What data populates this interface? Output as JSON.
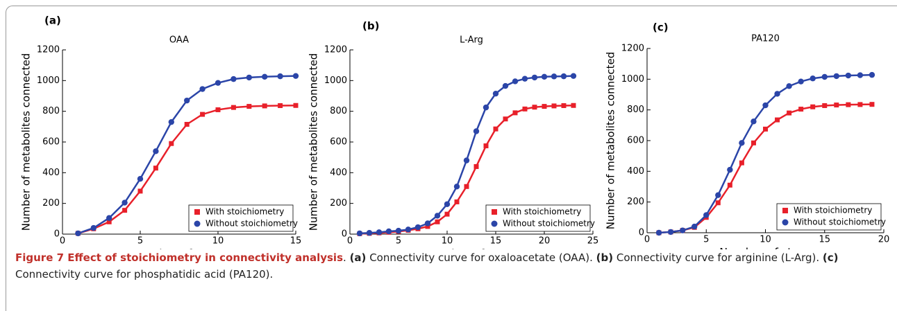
{
  "chart_data": [
    {
      "type": "line",
      "panel_label": "(a)",
      "title": "OAA",
      "xlabel": "Number of steps",
      "ylabel": "Number of metabolites connected",
      "x": [
        1,
        2,
        3,
        4,
        5,
        6,
        7,
        8,
        9,
        10,
        11,
        12,
        13,
        14,
        15
      ],
      "xlim": [
        0,
        15
      ],
      "xticks": [
        0,
        5,
        10,
        15
      ],
      "ylim": [
        0,
        1200
      ],
      "yticks": [
        0,
        200,
        400,
        600,
        800,
        1000,
        1200
      ],
      "legend": "lower right",
      "series": [
        {
          "name": "With stoichiometry",
          "color": "#e8202a",
          "marker": "square",
          "values": [
            5,
            35,
            80,
            155,
            280,
            430,
            590,
            715,
            780,
            810,
            825,
            832,
            835,
            837,
            838
          ]
        },
        {
          "name": "Without stoichiometry",
          "color": "#2b45a8",
          "marker": "circle",
          "values": [
            5,
            40,
            105,
            205,
            360,
            540,
            730,
            870,
            945,
            985,
            1010,
            1020,
            1025,
            1028,
            1030
          ]
        }
      ]
    },
    {
      "type": "line",
      "panel_label": "(b)",
      "title": "L-Arg",
      "xlabel": "Number of steps",
      "ylabel": "Number of metabolites connected",
      "x": [
        1,
        2,
        3,
        4,
        5,
        6,
        7,
        8,
        9,
        10,
        11,
        12,
        13,
        14,
        15,
        16,
        17,
        18,
        19,
        20,
        21,
        22,
        23
      ],
      "xlim": [
        0,
        25
      ],
      "xticks": [
        0,
        5,
        10,
        15,
        20,
        25
      ],
      "ylim": [
        0,
        1200
      ],
      "yticks": [
        0,
        200,
        400,
        600,
        800,
        1000,
        1200
      ],
      "legend": "lower right",
      "series": [
        {
          "name": "With stoichiometry",
          "color": "#e8202a",
          "marker": "square",
          "values": [
            3,
            5,
            8,
            12,
            17,
            25,
            35,
            50,
            80,
            130,
            210,
            310,
            440,
            575,
            685,
            750,
            790,
            815,
            827,
            832,
            835,
            837,
            838
          ]
        },
        {
          "name": "Without stoichiometry",
          "color": "#2b45a8",
          "marker": "circle",
          "values": [
            5,
            8,
            12,
            18,
            22,
            30,
            45,
            70,
            120,
            195,
            310,
            480,
            670,
            825,
            915,
            965,
            995,
            1012,
            1020,
            1025,
            1027,
            1028,
            1030
          ]
        }
      ]
    },
    {
      "type": "line",
      "panel_label": "(c)",
      "title": "PA120",
      "xlabel": "Number of steps",
      "ylabel": "Number of metabolites connected",
      "x": [
        1,
        2,
        3,
        4,
        5,
        6,
        7,
        8,
        9,
        10,
        11,
        12,
        13,
        14,
        15,
        16,
        17,
        18,
        19
      ],
      "xlim": [
        0,
        20
      ],
      "xticks": [
        0,
        5,
        10,
        15,
        20
      ],
      "ylim": [
        0,
        1200
      ],
      "yticks": [
        0,
        200,
        400,
        600,
        800,
        1000,
        1200
      ],
      "legend": "lower right",
      "series": [
        {
          "name": "With stoichiometry",
          "color": "#e8202a",
          "marker": "square",
          "values": [
            0,
            5,
            15,
            35,
            100,
            195,
            310,
            455,
            585,
            675,
            735,
            780,
            805,
            820,
            828,
            832,
            834,
            835,
            836
          ]
        },
        {
          "name": "Without stoichiometry",
          "color": "#2b45a8",
          "marker": "circle",
          "values": [
            0,
            5,
            15,
            40,
            115,
            245,
            410,
            585,
            725,
            830,
            905,
            955,
            985,
            1005,
            1015,
            1020,
            1024,
            1026,
            1028
          ]
        }
      ]
    }
  ],
  "caption": [
    {
      "bold": "Figure 7 Effect of stoichiometry in connectivity analysis",
      "text": "."
    },
    {
      "bold": "(a)",
      "text": "Connectivity curve for oxaloacetate (OAA)."
    },
    {
      "bold": "(b)",
      "text": "Connectivity curve for arginine (L-Arg)."
    },
    {
      "bold": "(c)",
      "text": "Connectivity curve for phosphatidic acid (PA120)."
    }
  ]
}
